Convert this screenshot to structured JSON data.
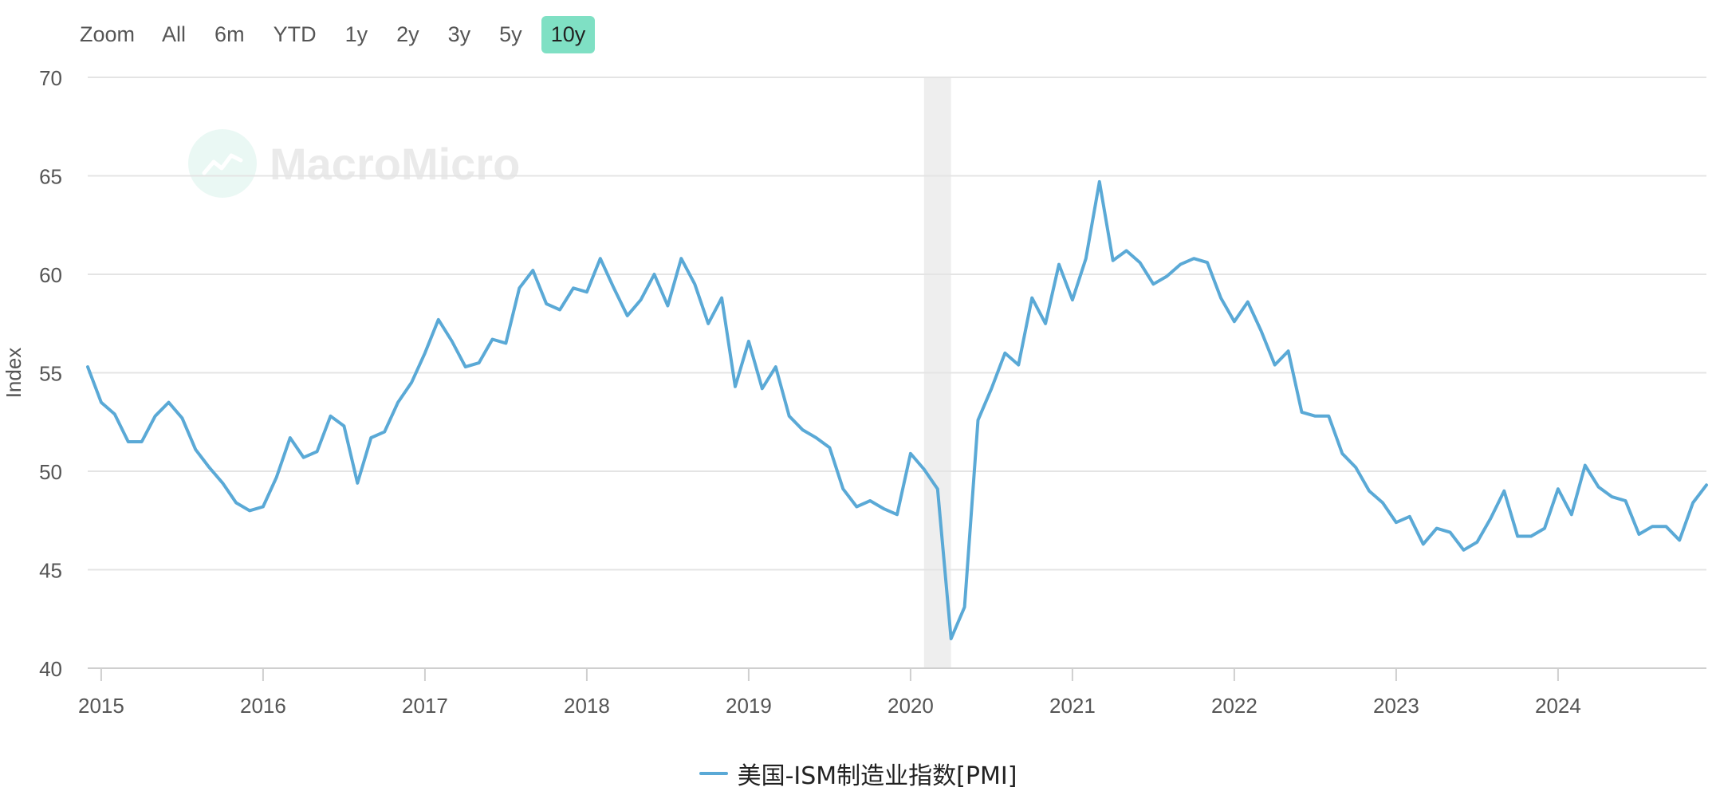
{
  "zoom": {
    "label": "Zoom",
    "options": [
      "All",
      "6m",
      "YTD",
      "1y",
      "2y",
      "3y",
      "5y",
      "10y"
    ],
    "active": "10y",
    "active_color": "#7fe0c4"
  },
  "watermark": {
    "text": "MacroMicro",
    "icon": "chart-logo-icon"
  },
  "chart_data": {
    "type": "line",
    "title": "",
    "xlabel": "",
    "ylabel": "Index",
    "ylim": [
      40,
      70
    ],
    "yticks": [
      40,
      45,
      50,
      55,
      60,
      65,
      70
    ],
    "xlim": [
      "2014-12",
      "2024-12"
    ],
    "xticks": [
      "2015",
      "2016",
      "2017",
      "2018",
      "2019",
      "2020",
      "2021",
      "2022",
      "2023",
      "2024"
    ],
    "grid": true,
    "legend_position": "bottom-center",
    "shaded_region": {
      "start": "2020-02",
      "end": "2020-04",
      "color": "#eeeeee"
    },
    "series": [
      {
        "name": "美国-ISM制造业指数[PMI]",
        "color": "#5aa9d6",
        "start": "2014-12",
        "frequency": "monthly",
        "values": [
          55.3,
          53.5,
          52.9,
          51.5,
          51.5,
          52.8,
          53.5,
          52.7,
          51.1,
          50.2,
          49.4,
          48.4,
          48.0,
          48.2,
          49.7,
          51.7,
          50.7,
          51.0,
          52.8,
          52.3,
          49.4,
          51.7,
          52.0,
          53.5,
          54.5,
          56.0,
          57.7,
          56.6,
          55.3,
          55.5,
          56.7,
          56.5,
          59.3,
          60.2,
          58.5,
          58.2,
          59.3,
          59.1,
          60.8,
          59.3,
          57.9,
          58.7,
          60.0,
          58.4,
          60.8,
          59.5,
          57.5,
          58.8,
          54.3,
          56.6,
          54.2,
          55.3,
          52.8,
          52.1,
          51.7,
          51.2,
          49.1,
          48.2,
          48.5,
          48.1,
          47.8,
          50.9,
          50.1,
          49.1,
          41.5,
          43.1,
          52.6,
          54.2,
          56.0,
          55.4,
          58.8,
          57.5,
          60.5,
          58.7,
          60.8,
          64.7,
          60.7,
          61.2,
          60.6,
          59.5,
          59.9,
          60.5,
          60.8,
          60.6,
          58.8,
          57.6,
          58.6,
          57.1,
          55.4,
          56.1,
          53.0,
          52.8,
          52.8,
          50.9,
          50.2,
          49.0,
          48.4,
          47.4,
          47.7,
          46.3,
          47.1,
          46.9,
          46.0,
          46.4,
          47.6,
          49.0,
          46.7,
          46.7,
          47.1,
          49.1,
          47.8,
          50.3,
          49.2,
          48.7,
          48.5,
          46.8,
          47.2,
          47.2,
          46.5,
          48.4,
          49.3
        ]
      }
    ]
  }
}
